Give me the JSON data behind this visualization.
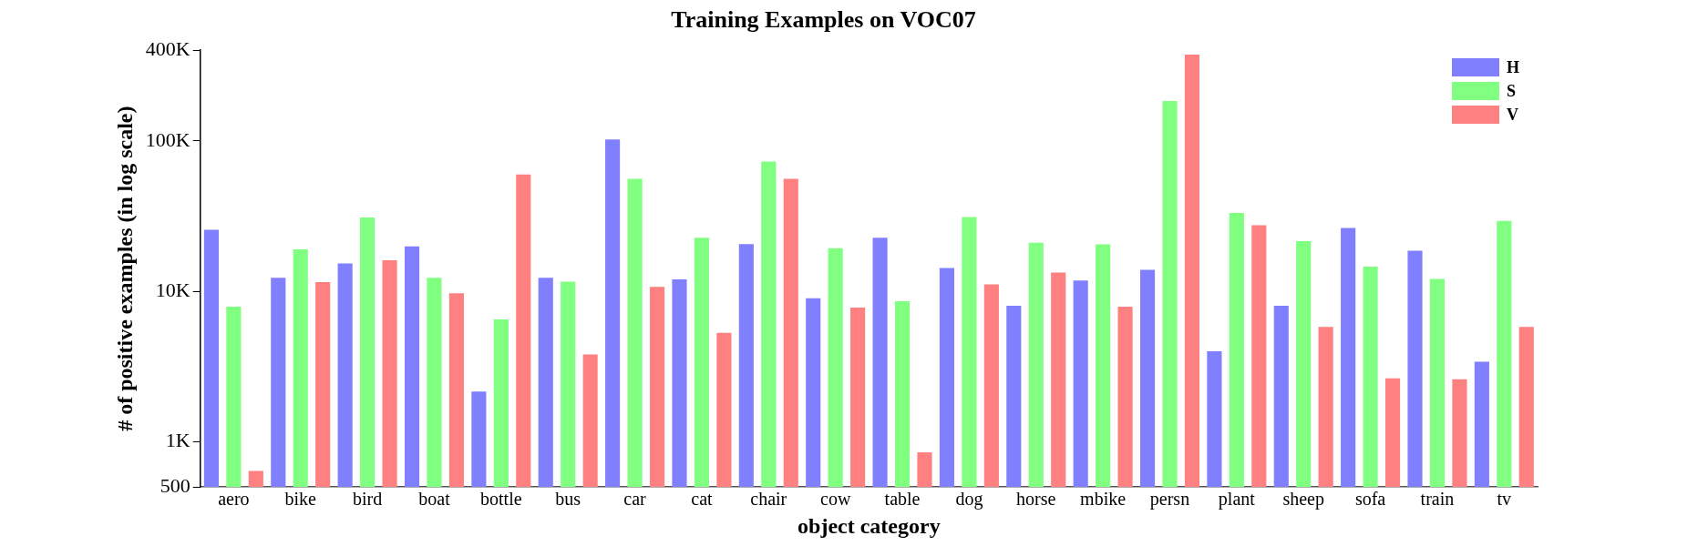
{
  "chart_data": {
    "type": "bar",
    "title": "Training Examples on VOC07",
    "xlabel": "object category",
    "ylabel": "# of positive examples (in log scale)",
    "categories": [
      "aero",
      "bike",
      "bird",
      "boat",
      "bottle",
      "bus",
      "car",
      "cat",
      "chair",
      "cow",
      "table",
      "dog",
      "horse",
      "mbike",
      "persn",
      "plant",
      "sheep",
      "sofa",
      "train",
      "tv"
    ],
    "series": [
      {
        "name": "H",
        "color": "#8080ff",
        "values": [
          25600,
          12300,
          15300,
          19900,
          2160,
          12300,
          102000,
          12000,
          20600,
          9000,
          22700,
          14300,
          8000,
          11800,
          13900,
          4000,
          8000,
          26400,
          18600,
          3400
        ]
      },
      {
        "name": "S",
        "color": "#80ff80",
        "values": [
          7900,
          19000,
          30900,
          12300,
          6500,
          11600,
          56000,
          22700,
          72800,
          19300,
          8600,
          31200,
          21000,
          20500,
          184000,
          33200,
          21500,
          14600,
          12100,
          29400
        ]
      },
      {
        "name": "V",
        "color": "#ff8080",
        "values": [
          640,
          11500,
          16100,
          9700,
          59800,
          3800,
          10700,
          5300,
          55900,
          7800,
          850,
          11100,
          13300,
          7900,
          374000,
          27500,
          5800,
          2640,
          2600,
          5800
        ]
      }
    ],
    "log": true,
    "ylim": [
      500,
      400000
    ],
    "yticks": [
      {
        "value": 500,
        "label": "500"
      },
      {
        "value": 1000,
        "label": "1K"
      },
      {
        "value": 10000,
        "label": "10K"
      },
      {
        "value": 100000,
        "label": "100K"
      },
      {
        "value": 400000,
        "label": "400K"
      }
    ],
    "grid": false,
    "legend": "top right"
  }
}
